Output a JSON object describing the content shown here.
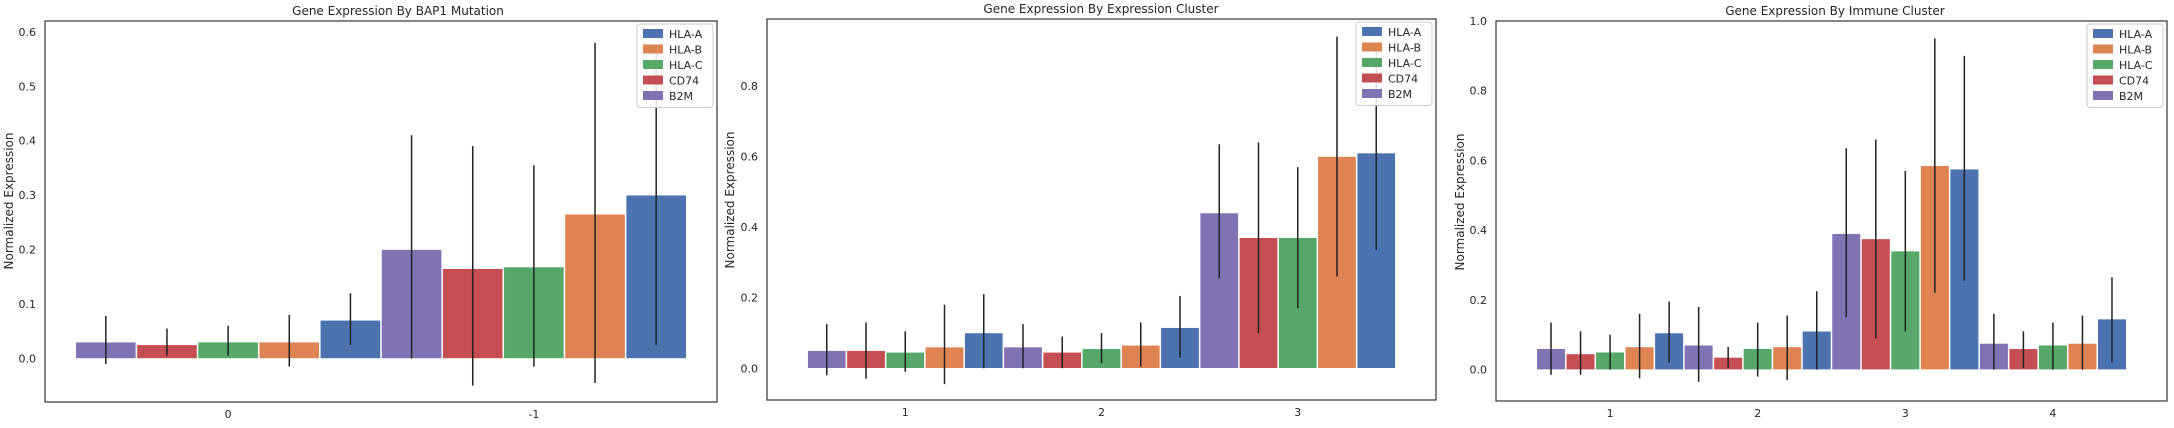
{
  "colors": {
    "HLA-A": "#4c72b0",
    "HLA-B": "#dd8452",
    "HLA-C": "#55a868",
    "CD74": "#c44e52",
    "B2M": "#8172b3",
    "error_bar": "#222222",
    "frame": "#333333",
    "text": "#262626"
  },
  "chart_data": [
    {
      "type": "bar",
      "title": "Gene Expression By BAP1 Mutation",
      "xlabel": "",
      "ylabel": "Normalized Expression",
      "ylim": [
        -0.08,
        0.62
      ],
      "yticks": [
        "0.0",
        "0.1",
        "0.2",
        "0.3",
        "0.4",
        "0.5",
        "0.6"
      ],
      "categories": [
        "0",
        "-1"
      ],
      "legend": [
        "HLA-A",
        "HLA-B",
        "HLA-C",
        "CD74",
        "B2M"
      ],
      "legend_position": "top-right",
      "grid": false,
      "bar_order": [
        "B2M",
        "CD74",
        "HLA-C",
        "HLA-B",
        "HLA-A"
      ],
      "series": [
        {
          "name": "HLA-A",
          "values": [
            0.07,
            0.3
          ],
          "err_low": [
            0.025,
            0.025
          ],
          "err_high": [
            0.12,
            0.575
          ]
        },
        {
          "name": "HLA-B",
          "values": [
            0.03,
            0.265
          ],
          "err_low": [
            -0.015,
            -0.045
          ],
          "err_high": [
            0.08,
            0.58
          ]
        },
        {
          "name": "HLA-C",
          "values": [
            0.03,
            0.168
          ],
          "err_low": [
            0.005,
            -0.015
          ],
          "err_high": [
            0.06,
            0.355
          ]
        },
        {
          "name": "CD74",
          "values": [
            0.025,
            0.165
          ],
          "err_low": [
            0.005,
            -0.05
          ],
          "err_high": [
            0.055,
            0.39
          ]
        },
        {
          "name": "B2M",
          "values": [
            0.03,
            0.2
          ],
          "err_low": [
            -0.01,
            0.0
          ],
          "err_high": [
            0.078,
            0.41
          ]
        }
      ]
    },
    {
      "type": "bar",
      "title": "Gene Expression By Expression Cluster",
      "xlabel": "",
      "ylabel": "Normalized Expression",
      "ylim": [
        -0.09,
        0.99
      ],
      "yticks": [
        "0.0",
        "0.2",
        "0.4",
        "0.6",
        "0.8"
      ],
      "categories": [
        "1",
        "2",
        "3"
      ],
      "legend": [
        "HLA-A",
        "HLA-B",
        "HLA-C",
        "CD74",
        "B2M"
      ],
      "legend_position": "top-right",
      "grid": false,
      "bar_order": [
        "B2M",
        "CD74",
        "HLA-C",
        "HLA-B",
        "HLA-A"
      ],
      "series": [
        {
          "name": "HLA-A",
          "values": [
            0.1,
            0.115,
            0.61
          ],
          "err_low": [
            0.0,
            0.03,
            0.335
          ],
          "err_high": [
            0.21,
            0.205,
            0.92
          ]
        },
        {
          "name": "HLA-B",
          "values": [
            0.06,
            0.065,
            0.6
          ],
          "err_low": [
            -0.045,
            0.005,
            0.26
          ],
          "err_high": [
            0.18,
            0.13,
            0.94
          ]
        },
        {
          "name": "HLA-C",
          "values": [
            0.045,
            0.055,
            0.37
          ],
          "err_low": [
            -0.01,
            0.015,
            0.17
          ],
          "err_high": [
            0.105,
            0.1,
            0.57
          ]
        },
        {
          "name": "CD74",
          "values": [
            0.05,
            0.045,
            0.37
          ],
          "err_low": [
            -0.03,
            0.0,
            0.1
          ],
          "err_high": [
            0.13,
            0.09,
            0.64
          ]
        },
        {
          "name": "B2M",
          "values": [
            0.05,
            0.06,
            0.44
          ],
          "err_low": [
            -0.02,
            0.0,
            0.255
          ],
          "err_high": [
            0.125,
            0.125,
            0.635
          ]
        }
      ]
    },
    {
      "type": "bar",
      "title": "Gene Expression By Immune Cluster",
      "xlabel": "",
      "ylabel": "Normalized Expression",
      "ylim": [
        -0.09,
        1.0
      ],
      "yticks": [
        "0.0",
        "0.2",
        "0.4",
        "0.6",
        "0.8",
        "1.0"
      ],
      "categories": [
        "1",
        "2",
        "3",
        "4"
      ],
      "legend": [
        "HLA-A",
        "HLA-B",
        "HLA-C",
        "CD74",
        "B2M"
      ],
      "legend_position": "top-right",
      "grid": false,
      "bar_order": [
        "B2M",
        "CD74",
        "HLA-C",
        "HLA-B",
        "HLA-A"
      ],
      "series": [
        {
          "name": "HLA-A",
          "values": [
            0.105,
            0.11,
            0.575,
            0.145
          ],
          "err_low": [
            0.02,
            0.0,
            0.255,
            0.02
          ],
          "err_high": [
            0.195,
            0.225,
            0.9,
            0.265
          ]
        },
        {
          "name": "HLA-B",
          "values": [
            0.065,
            0.065,
            0.585,
            0.075
          ],
          "err_low": [
            -0.025,
            -0.03,
            0.22,
            0.0
          ],
          "err_high": [
            0.16,
            0.155,
            0.95,
            0.155
          ]
        },
        {
          "name": "HLA-C",
          "values": [
            0.05,
            0.06,
            0.34,
            0.07
          ],
          "err_low": [
            0.0,
            -0.02,
            0.11,
            0.0
          ],
          "err_high": [
            0.1,
            0.135,
            0.57,
            0.135
          ]
        },
        {
          "name": "CD74",
          "values": [
            0.045,
            0.035,
            0.375,
            0.06
          ],
          "err_low": [
            -0.015,
            0.005,
            0.09,
            0.005
          ],
          "err_high": [
            0.11,
            0.065,
            0.66,
            0.11
          ]
        },
        {
          "name": "B2M",
          "values": [
            0.06,
            0.07,
            0.39,
            0.075
          ],
          "err_low": [
            -0.015,
            -0.035,
            0.15,
            0.0
          ],
          "err_high": [
            0.135,
            0.18,
            0.635,
            0.16
          ]
        }
      ]
    }
  ]
}
